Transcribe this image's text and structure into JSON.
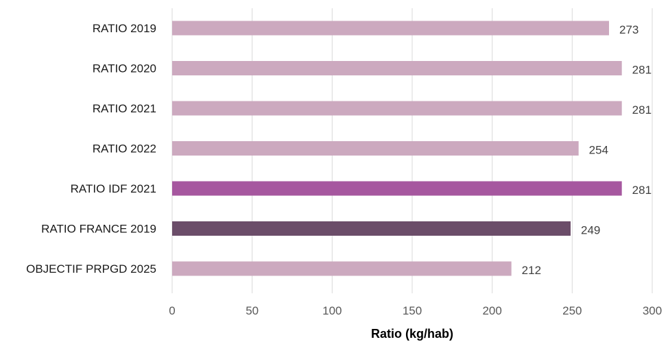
{
  "chart_data": {
    "type": "bar",
    "orientation": "horizontal",
    "categories": [
      "RATIO 2019",
      "RATIO 2020",
      "RATIO 2021",
      "RATIO 2022",
      "RATIO IDF 2021",
      "RATIO FRANCE 2019",
      "OBJECTIF PRPGD 2025"
    ],
    "values": [
      273,
      281,
      281,
      254,
      281,
      249,
      212
    ],
    "bar_colors": [
      "#cca9bf",
      "#cca9bf",
      "#cca9bf",
      "#cca9bf",
      "#a6579f",
      "#6b4d69",
      "#cca9bf"
    ],
    "xlabel": "Ratio (kg/hab)",
    "ylabel": "",
    "title": "",
    "xlim": [
      0,
      300
    ],
    "xticks": [
      0,
      50,
      100,
      150,
      200,
      250,
      300
    ],
    "grid": true,
    "legend": "none"
  }
}
